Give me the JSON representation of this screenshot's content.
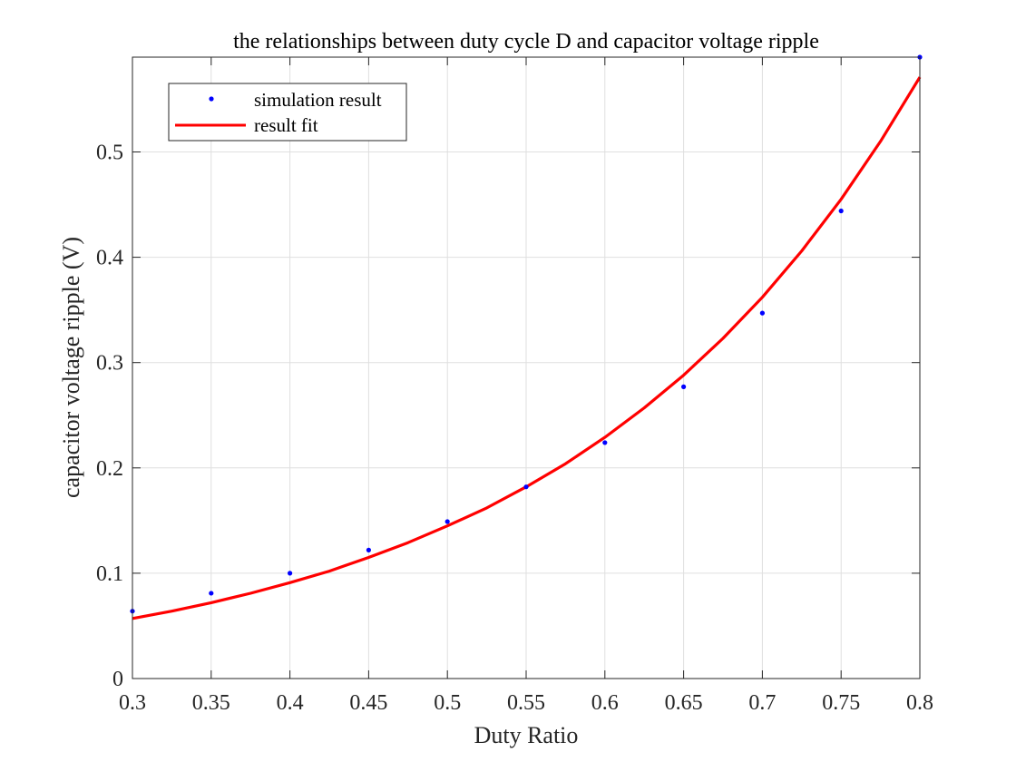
{
  "chart_data": {
    "type": "scatter",
    "title": "the relationships between duty cycle D and capacitor voltage ripple",
    "xlabel": "Duty Ratio",
    "ylabel": "capacitor voltage ripple (V)",
    "xlim": [
      0.3,
      0.8
    ],
    "ylim": [
      0,
      0.59
    ],
    "grid": true,
    "legend_position": "top-left",
    "x_ticks": [
      "0.3",
      "0.35",
      "0.4",
      "0.45",
      "0.5",
      "0.55",
      "0.6",
      "0.65",
      "0.7",
      "0.75",
      "0.8"
    ],
    "y_ticks": [
      "0",
      "0.1",
      "0.2",
      "0.3",
      "0.4",
      "0.5"
    ],
    "series": [
      {
        "name": "simulation result",
        "kind": "points",
        "color": "#0000ff",
        "x": [
          0.3,
          0.35,
          0.4,
          0.45,
          0.5,
          0.55,
          0.6,
          0.65,
          0.7,
          0.75,
          0.8
        ],
        "y": [
          0.064,
          0.081,
          0.1,
          0.122,
          0.149,
          0.182,
          0.224,
          0.277,
          0.347,
          0.444,
          0.59
        ]
      },
      {
        "name": "result fit",
        "kind": "line",
        "color": "#ff0000",
        "x": [
          0.3,
          0.325,
          0.35,
          0.375,
          0.4,
          0.425,
          0.45,
          0.475,
          0.5,
          0.525,
          0.55,
          0.575,
          0.6,
          0.625,
          0.65,
          0.675,
          0.7,
          0.725,
          0.75,
          0.775,
          0.8
        ],
        "y": [
          0.057,
          0.064,
          0.072,
          0.081,
          0.091,
          0.102,
          0.115,
          0.129,
          0.145,
          0.162,
          0.182,
          0.204,
          0.229,
          0.257,
          0.288,
          0.323,
          0.362,
          0.406,
          0.455,
          0.51,
          0.571
        ]
      }
    ]
  }
}
